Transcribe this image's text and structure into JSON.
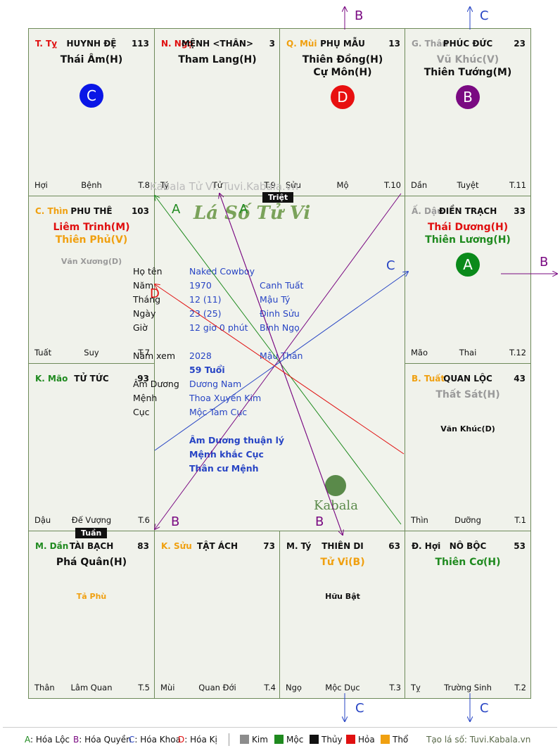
{
  "cells": [
    {
      "id": "ty",
      "pos": "T. Tỵ",
      "pos_color": "#e01010",
      "palace": "HUYNH ĐỆ",
      "num": "113",
      "stars": [
        {
          "t": "Thái Âm(H)",
          "c": "#111111"
        }
      ],
      "minors": [],
      "circle": {
        "label": "C",
        "color": "#0a16e6"
      },
      "foot": [
        "Hợi",
        "Bệnh",
        "T.8"
      ]
    },
    {
      "id": "ngo",
      "pos": "N. Ngọ",
      "pos_color": "#e01010",
      "palace": "MỆNH <THÂN>",
      "num": "3",
      "stars": [
        {
          "t": "Tham Lang(H)",
          "c": "#111111"
        }
      ],
      "minors": [],
      "foot": [
        "Tý",
        "Tử",
        "T.9"
      ]
    },
    {
      "id": "mui",
      "pos": "Q. Mùi",
      "pos_color": "#f0a010",
      "palace": "PHỤ MẪU",
      "num": "13",
      "stars": [
        {
          "t": "Thiên Đồng(H)",
          "c": "#111111"
        },
        {
          "t": "Cự Môn(H)",
          "c": "#111111"
        }
      ],
      "minors": [],
      "circle": {
        "label": "D",
        "color": "#e81010"
      },
      "foot": [
        "Sửu",
        "Mộ",
        "T.10"
      ]
    },
    {
      "id": "than",
      "pos": "G. Thân",
      "pos_color": "#9a9a9a",
      "palace": "PHÚC ĐỨC",
      "num": "23",
      "stars": [
        {
          "t": "Vũ Khúc(V)",
          "c": "#9a9a9a"
        },
        {
          "t": "Thiên Tướng(M)",
          "c": "#111111"
        }
      ],
      "minors": [],
      "circle": {
        "label": "B",
        "color": "#7a0a82"
      },
      "foot": [
        "Dần",
        "Tuyệt",
        "T.11"
      ]
    },
    {
      "id": "thin",
      "pos": "C. Thìn",
      "pos_color": "#f0a010",
      "palace": "PHU THÊ",
      "num": "103",
      "stars": [
        {
          "t": "Liêm Trinh(M)",
          "c": "#e01010"
        },
        {
          "t": "Thiên Phủ(V)",
          "c": "#f0a010"
        }
      ],
      "minors": [
        {
          "t": "Văn Xương(D)",
          "c": "#9a9a9a"
        }
      ],
      "foot": [
        "Tuất",
        "Suy",
        "T.7"
      ]
    },
    {
      "id": "dau",
      "pos": "Ấ. Dậu",
      "pos_color": "#9a9a9a",
      "palace": "ĐIỀN TRẠCH",
      "num": "33",
      "stars": [
        {
          "t": "Thái Dương(H)",
          "c": "#e01010"
        },
        {
          "t": "Thiên Lương(H)",
          "c": "#1f8a1f"
        }
      ],
      "minors": [],
      "circle": {
        "label": "A",
        "color": "#0a8a1a"
      },
      "foot": [
        "Mão",
        "Thai",
        "T.12"
      ]
    },
    {
      "id": "mao",
      "pos": "K. Mão",
      "pos_color": "#1f8a1f",
      "palace": "TỬ TỨC",
      "num": "93",
      "stars": [],
      "minors": [],
      "foot": [
        "Dậu",
        "Đế Vượng",
        "T.6"
      ]
    },
    {
      "id": "tuat",
      "pos": "B. Tuất",
      "pos_color": "#f0a010",
      "palace": "QUAN LỘC",
      "num": "43",
      "stars": [
        {
          "t": "Thất Sát(H)",
          "c": "#9a9a9a"
        }
      ],
      "minors": [
        {
          "t": "Văn Khúc(D)",
          "c": "#111111"
        }
      ],
      "foot": [
        "Thìn",
        "Dưỡng",
        "T.1"
      ]
    },
    {
      "id": "dan",
      "pos": "M. Dần",
      "pos_color": "#1f8a1f",
      "palace": "TÀI BẠCH",
      "num": "83",
      "stars": [
        {
          "t": "Phá Quân(H)",
          "c": "#111111"
        }
      ],
      "minors": [
        {
          "t": "Tả Phù",
          "c": "#f0a010"
        }
      ],
      "foot": [
        "Thân",
        "Lâm Quan",
        "T.5"
      ]
    },
    {
      "id": "suu",
      "pos": "K. Sửu",
      "pos_color": "#f0a010",
      "palace": "TẬT ÁCH",
      "num": "73",
      "stars": [],
      "minors": [],
      "foot": [
        "Mùi",
        "Quan Đới",
        "T.4"
      ]
    },
    {
      "id": "tyy",
      "pos": "M. Tý",
      "pos_color": "#111111",
      "palace": "THIÊN DI",
      "num": "63",
      "stars": [
        {
          "t": "Tử Vi(B)",
          "c": "#f0a010"
        }
      ],
      "minors": [
        {
          "t": "Hữu Bật",
          "c": "#111111"
        }
      ],
      "foot": [
        "Ngọ",
        "Mộc Dục",
        "T.3"
      ]
    },
    {
      "id": "hoi",
      "pos": "Đ. Hợi",
      "pos_color": "#111111",
      "palace": "NÔ BỘC",
      "num": "53",
      "stars": [
        {
          "t": "Thiên Cơ(H)",
          "c": "#1f8a1f"
        }
      ],
      "minors": [],
      "foot": [
        "Tỵ",
        "Trường Sinh",
        "T.2"
      ]
    }
  ],
  "tags": {
    "triet": "Triệt",
    "tuan": "Tuần"
  },
  "center": {
    "watermark": "Kabala Tử Vi: Tuvi.Kabala.vn",
    "title": "Lá Số Tử Vi",
    "rows": [
      {
        "label": "Họ tên",
        "v1": "Naked Cowboy",
        "v2": ""
      },
      {
        "label": "Năm",
        "v1": "1970",
        "v2": "Canh Tuất"
      },
      {
        "label": "Tháng",
        "v1": "12  (11)",
        "v2": "Mậu Tý"
      },
      {
        "label": "Ngày",
        "v1": "23  (25)",
        "v2": "Đinh Sửu"
      },
      {
        "label": "Giờ",
        "v1": "12 giờ 0 phút",
        "v2": "Bính Ngọ"
      }
    ],
    "year_label": "Năm xem",
    "year_value": "2028",
    "year_can": "Mậu Thân",
    "age": "59 Tuổi",
    "rows2": [
      {
        "label": "Âm Dương",
        "v1": "Dương Nam"
      },
      {
        "label": "Mệnh",
        "v1": "Thoa Xuyến Kim"
      },
      {
        "label": "Cục",
        "v1": "Mộc Tam Cục"
      }
    ],
    "notes": [
      "Âm Dương thuận lý",
      "Mệnh khắc Cục",
      "Thân cư Mệnh"
    ],
    "logo": "Kabala"
  },
  "annotations": {
    "A": "A",
    "B": "B",
    "C": "C",
    "D": "D"
  },
  "colors": {
    "A": "#1f8a1f",
    "B": "#7a0a82",
    "C": "#2744c4",
    "D": "#e01010"
  },
  "legend": {
    "hoa": [
      {
        "k": "A",
        "label": ": Hóa Lộc",
        "c": "#1f8a1f"
      },
      {
        "k": "B",
        "label": ": Hóa Quyền",
        "c": "#7a0a82"
      },
      {
        "k": "C",
        "label": ": Hóa Khoa",
        "c": "#2744c4"
      },
      {
        "k": "D",
        "label": ": Hóa Kị",
        "c": "#e01010"
      }
    ],
    "elements": [
      {
        "label": "Kim",
        "c": "#8c8c8c"
      },
      {
        "label": "Mộc",
        "c": "#1f8a1f"
      },
      {
        "label": "Thủy",
        "c": "#111111"
      },
      {
        "label": "Hỏa",
        "c": "#e01010"
      },
      {
        "label": "Thổ",
        "c": "#f0a010"
      }
    ],
    "site": "Tạo lá số: Tuvi.Kabala.vn"
  }
}
